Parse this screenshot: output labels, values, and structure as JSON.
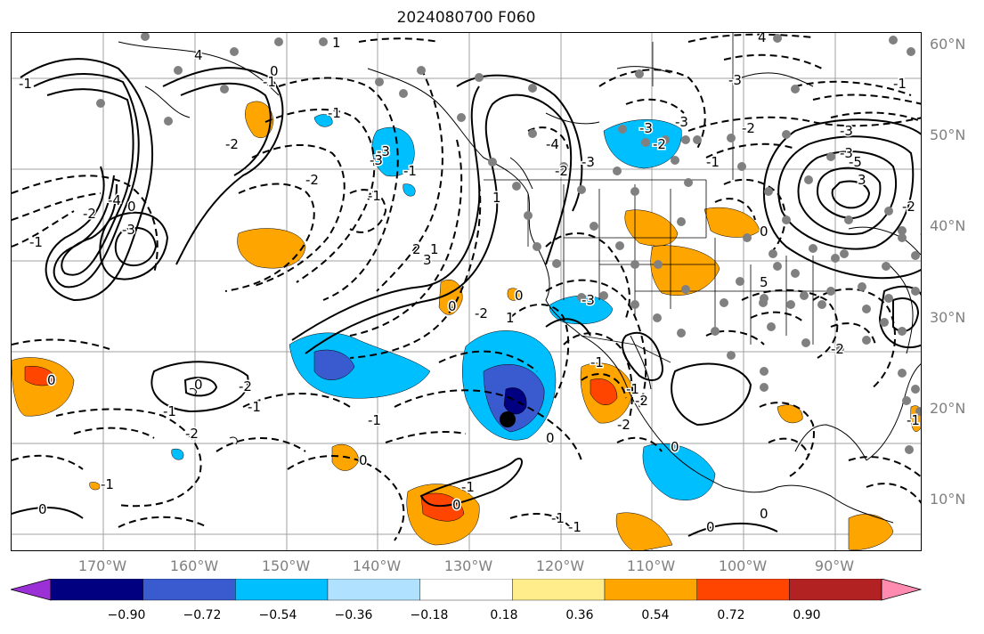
{
  "title": "2024080700 F060",
  "lat_labels": [
    "60°N",
    "50°N",
    "40°N",
    "30°N",
    "20°N",
    "10°N"
  ],
  "lon_labels": [
    "170°W",
    "160°W",
    "150°W",
    "140°W",
    "130°W",
    "120°W",
    "110°W",
    "100°W",
    "90°W"
  ],
  "colorbar": {
    "boundaries": [
      "−0.90",
      "−0.72",
      "−0.54",
      "−0.36",
      "−0.18",
      "0.18",
      "0.36",
      "0.54",
      "0.72",
      "0.90"
    ],
    "colors": [
      "#9b30d6",
      "#000080",
      "#3a5bd0",
      "#00bfff",
      "#b0e2ff",
      "#ffffff",
      "#ffec8b",
      "#ffa500",
      "#ff4500",
      "#b22222",
      "#ff8cb0"
    ]
  },
  "contour_labels": [
    "4",
    "-1",
    "1",
    "0",
    "-1",
    "-2",
    "-3",
    "-4",
    "-2",
    "-1",
    "-3",
    "-1",
    "-2",
    "0",
    "2",
    "3",
    "-3",
    "-1",
    "-1",
    "1",
    "1",
    "0",
    "-4",
    "-2",
    "-3",
    "-2",
    "-3",
    "-2",
    "-3",
    "-1",
    "4",
    "-3",
    "-2",
    "-1",
    "-3",
    "-5",
    "3",
    "5",
    "-3",
    "-2",
    "-1",
    "0",
    "-1",
    "-2",
    "-1",
    "0",
    "-2",
    "0",
    "-1",
    "-1",
    "0",
    "0",
    "-1",
    "0",
    "0",
    "-1",
    "-1",
    "-2",
    "0",
    "-2",
    "0",
    "-1",
    "0",
    "-1",
    "0",
    "1",
    "-1",
    "-3",
    "-2"
  ],
  "colors": {
    "contour": "#000000",
    "grid": "#a0a0a0",
    "station_dots": "#808080",
    "marker": "#000000"
  }
}
